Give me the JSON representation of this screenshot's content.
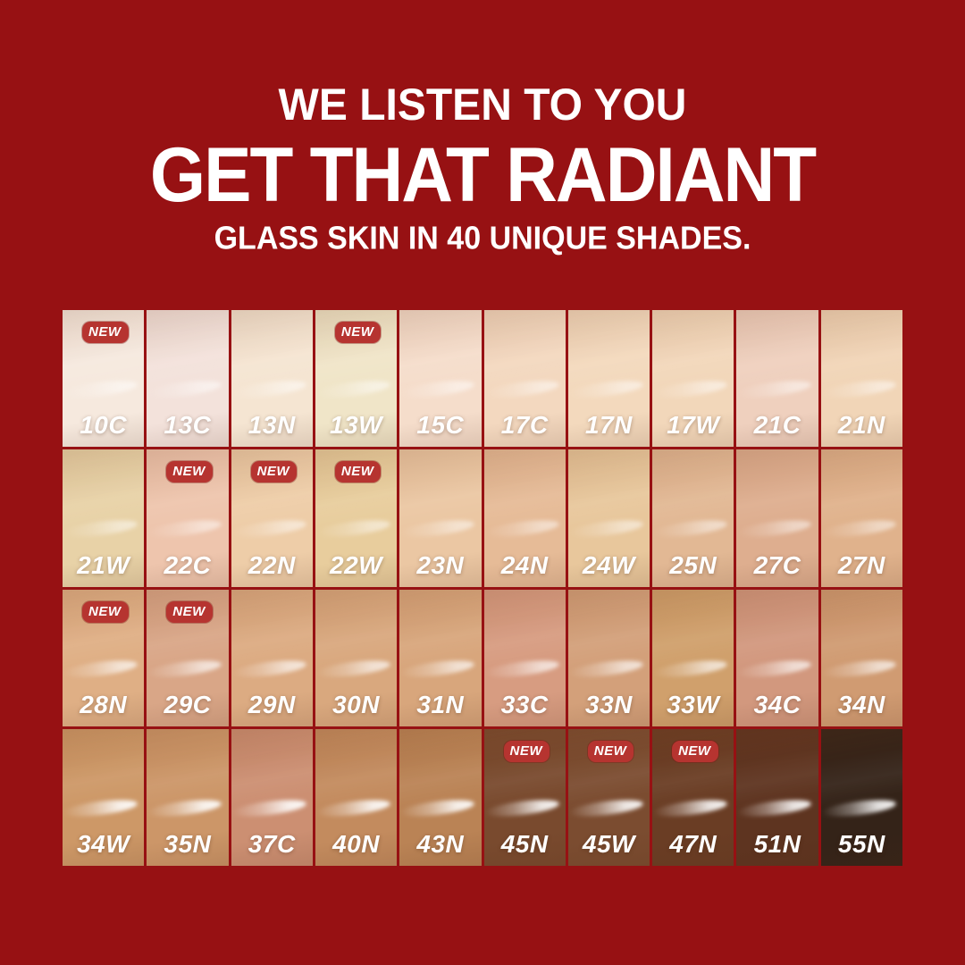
{
  "page": {
    "background": "#971113"
  },
  "header": {
    "line1": "WE LISTEN TO YOU",
    "line2": "GET THAT RADIANT",
    "line3": "GLASS SKIN IN 40 UNIQUE SHADES."
  },
  "badge": {
    "label": "NEW",
    "color": "#B63430"
  },
  "grid": {
    "rows": 4,
    "cols": 10,
    "shades": [
      {
        "code": "10C",
        "color": "#F6E9DE",
        "new": true
      },
      {
        "code": "13C",
        "color": "#F3E2DB",
        "new": false
      },
      {
        "code": "13N",
        "color": "#F5E5D2",
        "new": false
      },
      {
        "code": "13W",
        "color": "#F0E5C8",
        "new": true
      },
      {
        "code": "15C",
        "color": "#F5DDCB",
        "new": false
      },
      {
        "code": "17C",
        "color": "#F3D8BF",
        "new": false
      },
      {
        "code": "17N",
        "color": "#F3D9BD",
        "new": false
      },
      {
        "code": "17W",
        "color": "#F2D7BA",
        "new": false
      },
      {
        "code": "21C",
        "color": "#EFD0BE",
        "new": false
      },
      {
        "code": "21N",
        "color": "#F1D5B7",
        "new": false
      },
      {
        "code": "21W",
        "color": "#E8D2A7",
        "new": false
      },
      {
        "code": "22C",
        "color": "#EEC5AD",
        "new": true
      },
      {
        "code": "22N",
        "color": "#EECDA8",
        "new": true
      },
      {
        "code": "22W",
        "color": "#E8CD9D",
        "new": true
      },
      {
        "code": "23N",
        "color": "#EBC7A3",
        "new": false
      },
      {
        "code": "24N",
        "color": "#E6BB97",
        "new": false
      },
      {
        "code": "24W",
        "color": "#E8C79C",
        "new": false
      },
      {
        "code": "25N",
        "color": "#E2B894",
        "new": false
      },
      {
        "code": "27C",
        "color": "#DEAE8F",
        "new": false
      },
      {
        "code": "27N",
        "color": "#E0B28C",
        "new": false
      },
      {
        "code": "28N",
        "color": "#DFAF85",
        "new": true
      },
      {
        "code": "29C",
        "color": "#D9A687",
        "new": true
      },
      {
        "code": "29N",
        "color": "#DCAB82",
        "new": false
      },
      {
        "code": "30N",
        "color": "#D9A87E",
        "new": false
      },
      {
        "code": "31N",
        "color": "#D8A67C",
        "new": false
      },
      {
        "code": "33C",
        "color": "#D79C81",
        "new": false
      },
      {
        "code": "33N",
        "color": "#D3A07A",
        "new": false
      },
      {
        "code": "33W",
        "color": "#D0A06C",
        "new": false
      },
      {
        "code": "34C",
        "color": "#D2987E",
        "new": false
      },
      {
        "code": "34N",
        "color": "#D09B72",
        "new": false
      },
      {
        "code": "34W",
        "color": "#CD9867",
        "new": false
      },
      {
        "code": "35N",
        "color": "#CC9668",
        "new": false
      },
      {
        "code": "37C",
        "color": "#CC8F72",
        "new": false
      },
      {
        "code": "40N",
        "color": "#C38B5E",
        "new": false
      },
      {
        "code": "43N",
        "color": "#BA8355",
        "new": false
      },
      {
        "code": "45N",
        "color": "#794A2E",
        "new": true
      },
      {
        "code": "45W",
        "color": "#7B4C30",
        "new": true
      },
      {
        "code": "47N",
        "color": "#6A3D24",
        "new": true
      },
      {
        "code": "51N",
        "color": "#5E3420",
        "new": false
      },
      {
        "code": "55N",
        "color": "#342318",
        "new": false
      }
    ]
  }
}
